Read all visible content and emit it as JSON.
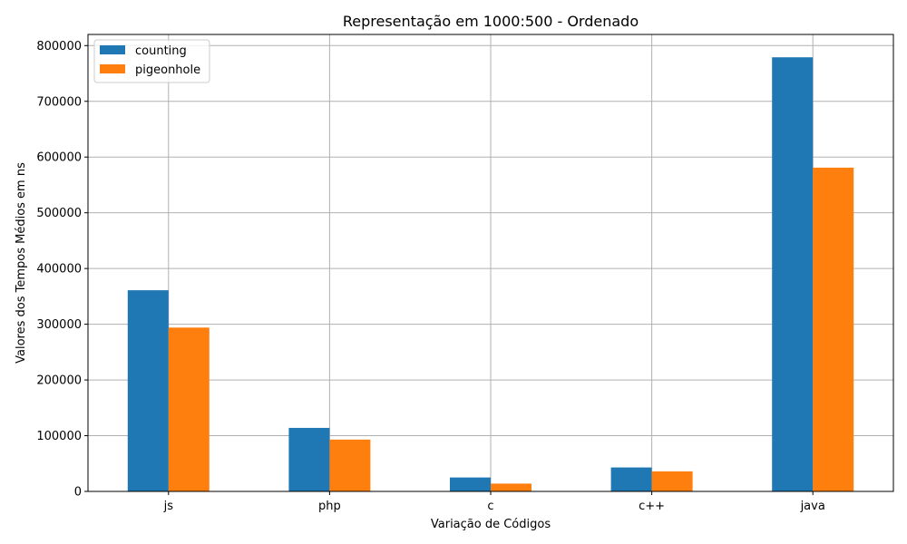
{
  "chart_data": {
    "type": "bar",
    "title": "Representação em 1000:500 - Ordenado",
    "xlabel": "Variação de Códigos",
    "ylabel": "Valores dos Tempos Médios em ns",
    "categories": [
      "js",
      "php",
      "c",
      "c++",
      "java"
    ],
    "series": [
      {
        "name": "counting",
        "color": "#1f77b4",
        "values": [
          361000,
          114000,
          25000,
          43000,
          779000
        ]
      },
      {
        "name": "pigeonhole",
        "color": "#ff7f0e",
        "values": [
          294000,
          93000,
          14000,
          36000,
          581000
        ]
      }
    ],
    "ylim": [
      0,
      820000
    ],
    "yticks": [
      0,
      100000,
      200000,
      300000,
      400000,
      500000,
      600000,
      700000,
      800000
    ],
    "ytick_labels": [
      "0",
      "100000",
      "200000",
      "300000",
      "400000",
      "500000",
      "600000",
      "700000",
      "800000"
    ],
    "grid": true,
    "legend_position": "top-left"
  }
}
